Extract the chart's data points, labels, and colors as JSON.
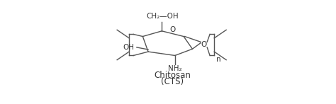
{
  "title_line1": "Chitosan",
  "title_line2": "(CTS)",
  "label_ch2oh": "CH₂—OH",
  "label_oh": "OH",
  "label_nh2": "NH₂",
  "label_o_ring": "O",
  "label_o_right": "O",
  "label_n": "n",
  "bg_color": "#ffffff",
  "line_color": "#555555",
  "text_color": "#333333",
  "font_size_label": 7.5,
  "font_size_title": 8.5,
  "font_size_n": 7.5
}
